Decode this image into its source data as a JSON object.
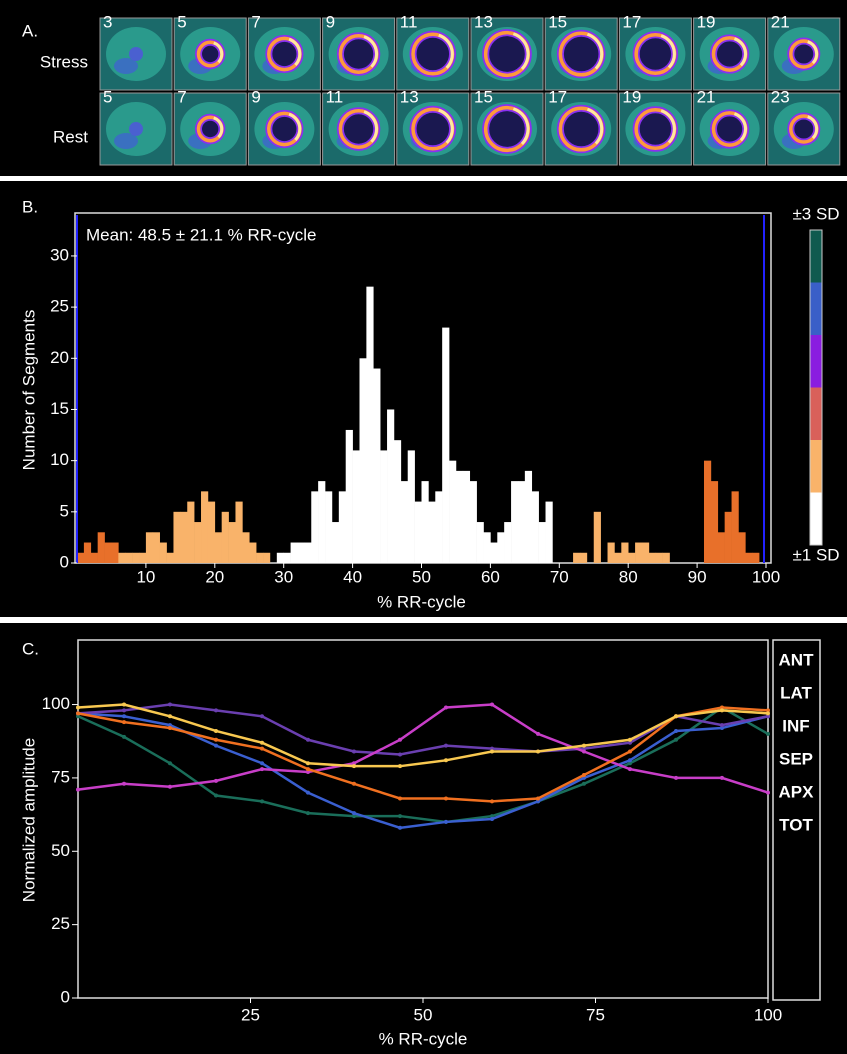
{
  "panel_a": {
    "label": "A.",
    "rows": [
      {
        "label": "Stress",
        "slices": [
          3,
          5,
          7,
          9,
          11,
          13,
          15,
          17,
          19,
          21
        ]
      },
      {
        "label": "Rest",
        "slices": [
          5,
          7,
          9,
          11,
          13,
          15,
          17,
          19,
          21,
          23
        ]
      }
    ]
  },
  "chart_data": [
    {
      "type": "histogram",
      "panel_label": "B.",
      "annotation": "Mean: 48.5 ± 21.1 % RR-cycle",
      "xlabel": "% RR-cycle",
      "ylabel": "Number of Segments",
      "bins": [
        0,
        1,
        2,
        3,
        4,
        5,
        6,
        7,
        8,
        9,
        10,
        11,
        12,
        13,
        14,
        15,
        16,
        17,
        18,
        19,
        20,
        21,
        22,
        23,
        24,
        25,
        26,
        27,
        28,
        29,
        30,
        31,
        32,
        33,
        34,
        35,
        36,
        37,
        38,
        39,
        40,
        41,
        42,
        43,
        44,
        45,
        46,
        47,
        48,
        49,
        50,
        51,
        52,
        53,
        54,
        55,
        56,
        57,
        58,
        59,
        60,
        61,
        62,
        63,
        64,
        65,
        66,
        67,
        68,
        69,
        70,
        71,
        72,
        73,
        74,
        75,
        76,
        77,
        78,
        79,
        80,
        81,
        82,
        83,
        84,
        85,
        86,
        87,
        88,
        89,
        90,
        91,
        92,
        93,
        94,
        95,
        96,
        97,
        98,
        99,
        100
      ],
      "values": [
        1,
        2,
        1,
        3,
        2,
        2,
        1,
        1,
        1,
        1,
        3,
        3,
        2,
        1,
        5,
        5,
        6,
        4,
        7,
        6,
        3,
        5,
        4,
        6,
        3,
        2,
        1,
        1,
        0,
        1,
        1,
        2,
        2,
        2,
        7,
        8,
        7,
        4,
        7,
        13,
        11,
        20,
        27,
        19,
        11,
        15,
        12,
        8,
        11,
        6,
        8,
        6,
        7,
        23,
        10,
        9,
        9,
        8,
        4,
        3,
        2,
        3,
        4,
        8,
        8,
        9,
        7,
        4,
        6,
        0,
        0,
        0,
        1,
        1,
        0,
        5,
        0,
        2,
        1,
        2,
        1,
        2,
        2,
        1,
        1,
        1,
        0,
        0,
        0,
        0,
        0,
        10,
        8,
        3,
        5,
        7,
        3,
        1,
        1,
        0
      ],
      "bar_colors": [
        "#e8702a",
        "#e8702a",
        "#e8702a",
        "#e8702a",
        "#e8702a",
        "#e8702a",
        "#f9b36a",
        "#f9b36a",
        "#f9b36a",
        "#f9b36a",
        "#f9b36a",
        "#f9b36a",
        "#f9b36a",
        "#f9b36a",
        "#f9b36a",
        "#f9b36a",
        "#f9b36a",
        "#f9b36a",
        "#f9b36a",
        "#f9b36a",
        "#f9b36a",
        "#f9b36a",
        "#f9b36a",
        "#f9b36a",
        "#f9b36a",
        "#f9b36a",
        "#f9b36a",
        "#f9b36a",
        "#f9b36a",
        "#ffffff",
        "#ffffff",
        "#ffffff",
        "#ffffff",
        "#ffffff",
        "#ffffff",
        "#ffffff",
        "#ffffff",
        "#ffffff",
        "#ffffff",
        "#ffffff",
        "#ffffff",
        "#ffffff",
        "#ffffff",
        "#ffffff",
        "#ffffff",
        "#ffffff",
        "#ffffff",
        "#ffffff",
        "#ffffff",
        "#ffffff",
        "#ffffff",
        "#ffffff",
        "#ffffff",
        "#ffffff",
        "#ffffff",
        "#ffffff",
        "#ffffff",
        "#ffffff",
        "#ffffff",
        "#ffffff",
        "#ffffff",
        "#ffffff",
        "#ffffff",
        "#ffffff",
        "#ffffff",
        "#ffffff",
        "#ffffff",
        "#ffffff",
        "#ffffff",
        "#ffffff",
        "#f9b36a",
        "#f9b36a",
        "#f9b36a",
        "#f9b36a",
        "#f9b36a",
        "#f9b36a",
        "#f9b36a",
        "#f9b36a",
        "#f9b36a",
        "#f9b36a",
        "#f9b36a",
        "#f9b36a",
        "#f9b36a",
        "#f9b36a",
        "#f9b36a",
        "#f9b36a",
        "#f9b36a",
        "#f9b36a",
        "#f9b36a",
        "#f9b36a",
        "#e8702a",
        "#e8702a",
        "#e8702a",
        "#e8702a",
        "#e8702a",
        "#e8702a",
        "#e8702a",
        "#e8702a",
        "#e8702a",
        "#e8702a"
      ],
      "xlim": [
        0,
        100
      ],
      "ylim": [
        0,
        34
      ],
      "xticks": [
        10,
        20,
        30,
        40,
        50,
        60,
        70,
        80,
        90,
        100
      ],
      "yticks": [
        0,
        5,
        10,
        15,
        20,
        25,
        30
      ],
      "colorbar": {
        "labels": [
          "±3 SD",
          "±1 SD"
        ],
        "colors": [
          "#0f5a4f",
          "#3a5fc8",
          "#8a1de0",
          "#d9605a",
          "#f9b36a",
          "#ffffff"
        ]
      }
    },
    {
      "type": "line",
      "panel_label": "C.",
      "xlabel": "% RR-cycle",
      "ylabel": "Normalized amplitude",
      "x": [
        0,
        6.67,
        13.33,
        20,
        26.67,
        33.33,
        40,
        46.67,
        53.33,
        60,
        66.67,
        73.33,
        80,
        86.67,
        93.33,
        100
      ],
      "series": [
        {
          "name": "ANT",
          "color": "#1a6e5a",
          "values": [
            96,
            89,
            80,
            69,
            67,
            63,
            62,
            62,
            60,
            62,
            67,
            73,
            80,
            88,
            99,
            90
          ]
        },
        {
          "name": "LAT",
          "color": "#3a5fd0",
          "values": [
            97,
            96,
            93,
            86,
            80,
            70,
            63,
            58,
            60,
            61,
            67,
            75,
            81,
            91,
            92,
            96
          ]
        },
        {
          "name": "INF",
          "color": "#6a3fb0",
          "values": [
            97,
            98,
            100,
            98,
            96,
            88,
            84,
            83,
            86,
            85,
            84,
            85,
            87,
            96,
            93,
            96
          ]
        },
        {
          "name": "SEP",
          "color": "#c83ec8",
          "values": [
            71,
            73,
            72,
            74,
            78,
            77,
            80,
            88,
            99,
            100,
            90,
            84,
            78,
            75,
            75,
            70
          ]
        },
        {
          "name": "APX",
          "color": "#f07020",
          "values": [
            97,
            94,
            92,
            88,
            85,
            78,
            73,
            68,
            68,
            67,
            68,
            76,
            84,
            96,
            99,
            98
          ]
        },
        {
          "name": "TOT",
          "color": "#f8c850",
          "values": [
            99,
            100,
            96,
            91,
            87,
            80,
            79,
            79,
            81,
            84,
            84,
            86,
            88,
            96,
            98,
            97
          ]
        }
      ],
      "xlim": [
        0,
        100
      ],
      "ylim": [
        0,
        122
      ],
      "xticks": [
        25,
        50,
        75,
        100
      ],
      "yticks": [
        0,
        25,
        50,
        75,
        100
      ]
    }
  ]
}
